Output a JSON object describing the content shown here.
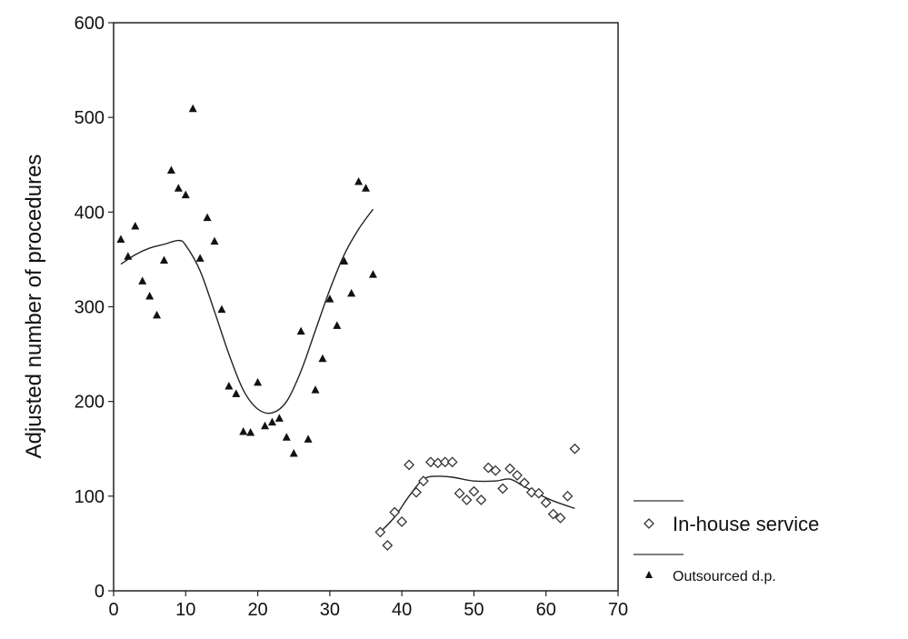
{
  "chart_data": {
    "type": "scatter",
    "title": "",
    "xlabel": "",
    "ylabel": "Adjusted number of procedures",
    "xlim": [
      0,
      70
    ],
    "ylim": [
      0,
      600
    ],
    "x_ticks": [
      0,
      10,
      20,
      30,
      40,
      50,
      60,
      70
    ],
    "y_ticks": [
      0,
      100,
      200,
      300,
      400,
      500,
      600
    ],
    "x_tick_labels": [
      "0",
      "10",
      "20",
      "30",
      "40",
      "50",
      "60",
      "70"
    ],
    "y_tick_labels": [
      "0",
      "100",
      "200",
      "300",
      "400",
      "500",
      "600"
    ],
    "grid": false,
    "legend_position": "bottom-right",
    "series": [
      {
        "name": "In-house service",
        "marker": "open-diamond",
        "x": [
          37,
          38,
          39,
          40,
          41,
          42,
          43,
          44,
          45,
          46,
          47,
          48,
          49,
          50,
          51,
          52,
          53,
          54,
          55,
          56,
          57,
          58,
          59,
          60,
          61,
          62,
          63,
          64
        ],
        "y": [
          62,
          48,
          83,
          73,
          133,
          104,
          116,
          136,
          135,
          136,
          136,
          103,
          96,
          105,
          96,
          130,
          127,
          108,
          129,
          122,
          114,
          104,
          103,
          93,
          81,
          77,
          100,
          150
        ]
      },
      {
        "name": "Outsourced d.p.",
        "marker": "filled-triangle",
        "x": [
          1,
          2,
          3,
          4,
          5,
          6,
          7,
          8,
          9,
          10,
          11,
          12,
          13,
          14,
          15,
          16,
          17,
          18,
          19,
          20,
          21,
          22,
          23,
          24,
          25,
          26,
          27,
          28,
          29,
          30,
          31,
          32,
          33,
          34,
          35,
          36
        ],
        "y": [
          371,
          353,
          385,
          327,
          311,
          291,
          349,
          444,
          425,
          418,
          509,
          351,
          394,
          369,
          297,
          216,
          208,
          168,
          167,
          220,
          174,
          178,
          182,
          162,
          145,
          274,
          160,
          212,
          245,
          308,
          280,
          348,
          314,
          432,
          425,
          334
        ]
      }
    ],
    "trend_lines": [
      {
        "series": "Outsourced d.p.",
        "x": [
          1,
          3,
          5,
          7,
          9,
          10,
          12,
          14,
          16,
          18,
          20,
          22,
          24,
          26,
          28,
          30,
          32,
          34,
          36
        ],
        "y": [
          345,
          355,
          362,
          366,
          370,
          365,
          338,
          295,
          250,
          212,
          192,
          188,
          200,
          232,
          275,
          318,
          355,
          382,
          403
        ]
      },
      {
        "series": "In-house service",
        "x": [
          37,
          39,
          41,
          43,
          45,
          47,
          50,
          53,
          55,
          57,
          59,
          61,
          64
        ],
        "y": [
          62,
          78,
          100,
          118,
          121,
          120,
          116,
          116,
          118,
          110,
          102,
          95,
          87
        ]
      }
    ]
  }
}
